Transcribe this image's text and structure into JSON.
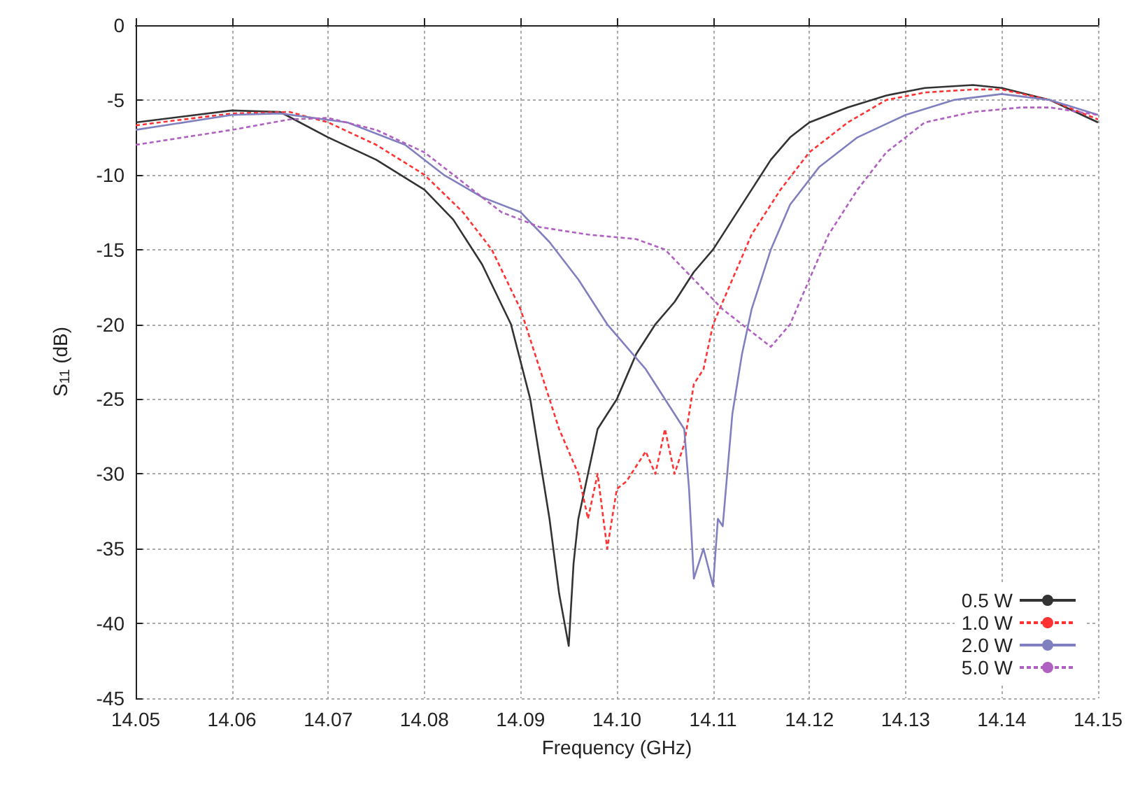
{
  "chart_data": {
    "type": "line",
    "xlabel": "Frequency (GHz)",
    "ylabel": "S$_{11}$ (dB)",
    "xlim": [
      14.05,
      14.15
    ],
    "xticks": [
      14.05,
      14.06,
      14.07,
      14.08,
      14.09,
      {
        "value": 14.1,
        "label": "14.10"
      },
      14.11,
      14.12,
      14.13,
      14.14,
      14.15
    ],
    "ylim": [
      -45,
      0
    ],
    "yticks": [
      -45,
      -40,
      -35,
      -30,
      -25,
      -20,
      -15,
      -10,
      -5,
      0
    ],
    "grid": true,
    "legend": "bottom right",
    "marker": "none",
    "series": [
      {
        "name": "0.5 W",
        "color": "#333333",
        "line_style": "solid",
        "x": [
          14.05,
          14.06,
          14.065,
          14.07,
          14.075,
          14.08,
          14.083,
          14.086,
          14.089,
          14.091,
          14.092,
          14.093,
          14.094,
          14.095,
          14.0955,
          14.096,
          14.097,
          14.098,
          14.099,
          14.1,
          14.101,
          14.102,
          14.104,
          14.106,
          14.108,
          14.11,
          14.112,
          14.114,
          14.116,
          14.118,
          14.12,
          14.124,
          14.128,
          14.132,
          14.137,
          14.14,
          14.145,
          14.15
        ],
        "values": [
          -6.5,
          -5.7,
          -5.8,
          -7.5,
          -9,
          -11,
          -13,
          -16,
          -20,
          -25,
          -29,
          -33,
          -38,
          -41.5,
          -36,
          -33,
          -30,
          -27,
          -26,
          -25,
          -23.5,
          -22,
          -20,
          -18.5,
          -16.5,
          -15,
          -13,
          -11,
          -9,
          -7.5,
          -6.5,
          -5.5,
          -4.7,
          -4.2,
          -4,
          -4.2,
          -5,
          -6.5
        ]
      },
      {
        "name": "1.0 W",
        "color": "#ff3333",
        "line_style": "dashed",
        "x": [
          14.05,
          14.06,
          14.066,
          14.07,
          14.075,
          14.08,
          14.084,
          14.087,
          14.09,
          14.092,
          14.094,
          14.096,
          14.097,
          14.098,
          14.099,
          14.1,
          14.101,
          14.103,
          14.104,
          14.105,
          14.106,
          14.107,
          14.108,
          14.109,
          14.11,
          14.112,
          14.114,
          14.117,
          14.12,
          14.124,
          14.128,
          14.132,
          14.137,
          14.14,
          14.145,
          14.15
        ],
        "values": [
          -6.7,
          -5.9,
          -5.8,
          -6.5,
          -8,
          -10,
          -12.5,
          -15,
          -19,
          -23,
          -27,
          -30,
          -33,
          -30,
          -35,
          -31,
          -30.5,
          -28.5,
          -30,
          -27,
          -30,
          -28,
          -24,
          -23,
          -20,
          -17,
          -14,
          -11,
          -8.5,
          -6.5,
          -5,
          -4.5,
          -4.3,
          -4.3,
          -5,
          -6.3
        ]
      },
      {
        "name": "2.0 W",
        "color": "#8080c0",
        "line_style": "solid",
        "x": [
          14.05,
          14.06,
          14.065,
          14.072,
          14.078,
          14.082,
          14.086,
          14.09,
          14.093,
          14.096,
          14.099,
          14.101,
          14.103,
          14.105,
          14.107,
          14.1075,
          14.108,
          14.109,
          14.11,
          14.1105,
          14.111,
          14.112,
          14.113,
          14.114,
          14.116,
          14.118,
          14.121,
          14.125,
          14.13,
          14.135,
          14.14,
          14.145,
          14.15
        ],
        "values": [
          -7,
          -6,
          -5.9,
          -6.5,
          -8,
          -10,
          -11.5,
          -12.5,
          -14.5,
          -17,
          -20,
          -21.5,
          -23,
          -25,
          -27,
          -31,
          -37,
          -35,
          -37.5,
          -33,
          -33.5,
          -26,
          -22,
          -19,
          -15,
          -12,
          -9.5,
          -7.5,
          -6,
          -5,
          -4.6,
          -5,
          -6
        ]
      },
      {
        "name": "5.0 W",
        "color": "#b060c0",
        "line_style": "dashed",
        "x": [
          14.05,
          14.06,
          14.066,
          14.07,
          14.075,
          14.08,
          14.084,
          14.088,
          14.092,
          14.097,
          14.102,
          14.105,
          14.108,
          14.111,
          14.114,
          14.116,
          14.118,
          14.12,
          14.122,
          14.125,
          14.128,
          14.132,
          14.137,
          14.142,
          14.145,
          14.15
        ],
        "values": [
          -8,
          -7,
          -6.3,
          -6.2,
          -7,
          -8.5,
          -10.5,
          -12.5,
          -13.5,
          -14,
          -14.3,
          -15,
          -17,
          -19,
          -20.5,
          -21.5,
          -20,
          -17,
          -14,
          -11,
          -8.5,
          -6.5,
          -5.8,
          -5.5,
          -5.5,
          -6
        ]
      }
    ]
  }
}
